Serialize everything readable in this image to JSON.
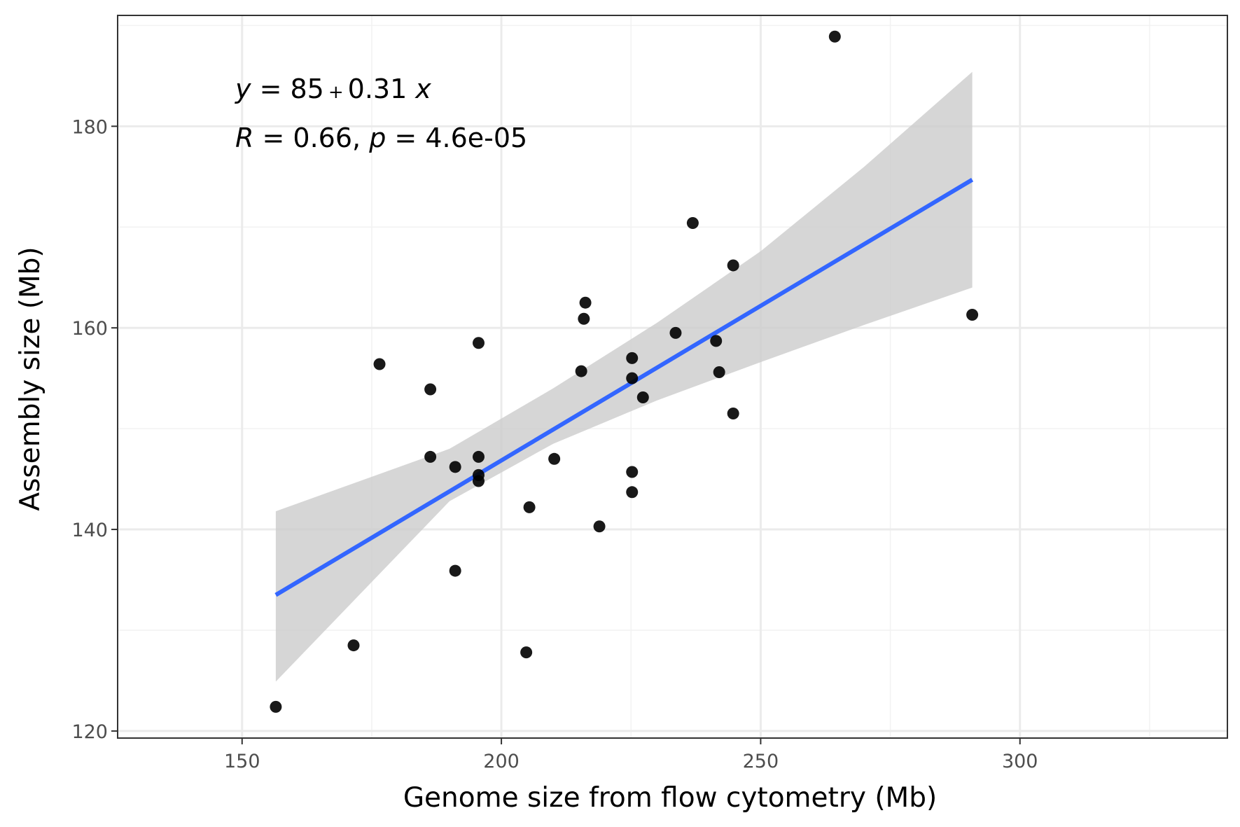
{
  "chart_data": {
    "type": "scatter",
    "title": "",
    "xlabel": "Genome size from flow cytometry (Mb)",
    "ylabel": "Assembly size (Mb)",
    "xlim": [
      126,
      340
    ],
    "ylim": [
      119.3,
      191
    ],
    "x_ticks": [
      150,
      200,
      250,
      300
    ],
    "y_ticks": [
      120,
      140,
      160,
      180
    ],
    "x_tick_labels": [
      "150",
      "200",
      "250",
      "300"
    ],
    "y_tick_labels": [
      "120",
      "140",
      "160",
      "180"
    ],
    "grid": true,
    "legend": "none",
    "points": [
      {
        "x": 156.5,
        "y": 122.4
      },
      {
        "x": 171.5,
        "y": 128.5
      },
      {
        "x": 176.5,
        "y": 156.4
      },
      {
        "x": 186.3,
        "y": 153.9
      },
      {
        "x": 186.3,
        "y": 147.2
      },
      {
        "x": 191.1,
        "y": 146.2
      },
      {
        "x": 191.1,
        "y": 135.9
      },
      {
        "x": 195.6,
        "y": 158.5
      },
      {
        "x": 195.6,
        "y": 147.2
      },
      {
        "x": 195.6,
        "y": 145.4
      },
      {
        "x": 195.6,
        "y": 144.8
      },
      {
        "x": 204.8,
        "y": 127.8
      },
      {
        "x": 205.4,
        "y": 142.2
      },
      {
        "x": 210.2,
        "y": 147.0
      },
      {
        "x": 215.4,
        "y": 155.7
      },
      {
        "x": 215.9,
        "y": 160.9
      },
      {
        "x": 216.2,
        "y": 162.5
      },
      {
        "x": 218.9,
        "y": 140.3
      },
      {
        "x": 225.2,
        "y": 157.0
      },
      {
        "x": 225.2,
        "y": 155.0
      },
      {
        "x": 225.2,
        "y": 145.7
      },
      {
        "x": 225.2,
        "y": 143.7
      },
      {
        "x": 227.3,
        "y": 153.1
      },
      {
        "x": 233.6,
        "y": 159.5
      },
      {
        "x": 236.9,
        "y": 170.4
      },
      {
        "x": 241.4,
        "y": 158.7
      },
      {
        "x": 242.0,
        "y": 155.6
      },
      {
        "x": 244.7,
        "y": 166.2
      },
      {
        "x": 244.7,
        "y": 151.5
      },
      {
        "x": 264.3,
        "y": 188.9
      },
      {
        "x": 290.8,
        "y": 161.3
      }
    ],
    "fit": {
      "x_range": [
        156.5,
        290.8
      ],
      "y_range": [
        133.5,
        174.7
      ],
      "color": "#3366FF",
      "ci_x": [
        156.5,
        190,
        210,
        230,
        250,
        270,
        290.8
      ],
      "ci_low": [
        124.9,
        142.8,
        148.5,
        152.8,
        156.6,
        160.3,
        164.0
      ],
      "ci_high": [
        141.8,
        148.0,
        154.0,
        160.5,
        167.6,
        176.0,
        185.4
      ],
      "ci_color": "#cccccc"
    },
    "annotations": {
      "equation": {
        "y_var": "y",
        "intercept": "85",
        "op": "+",
        "slope": "0.31",
        "x_var": "x"
      },
      "stats": {
        "r_var": "R",
        "r_value": "0.66",
        "p_var": "p",
        "p_value": "4.6e-05"
      }
    }
  }
}
